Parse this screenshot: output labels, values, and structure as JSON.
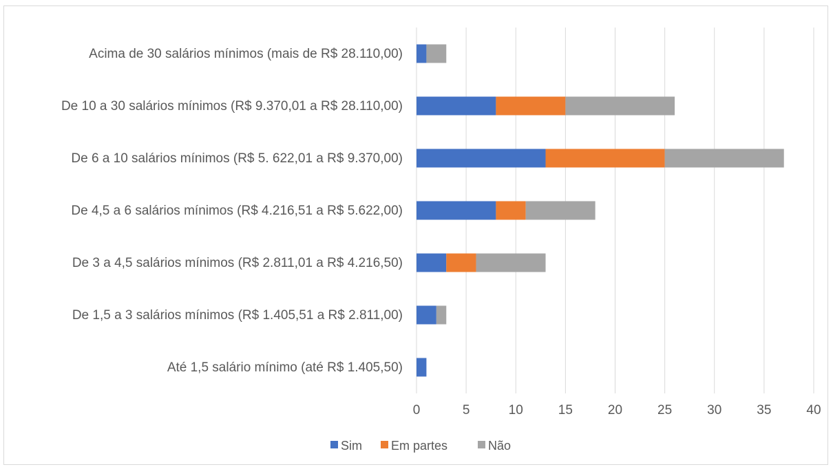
{
  "chart_data": {
    "type": "bar",
    "orientation": "horizontal",
    "stacked": true,
    "categories": [
      "Acima de 30 salários mínimos (mais de R$ 28.110,00)",
      "De 10 a 30 salários mínimos (R$ 9.370,01 a R$ 28.110,00)",
      "De 6 a 10 salários mínimos (R$ 5. 622,01 a R$ 9.370,00)",
      "De 4,5 a 6 salários mínimos (R$ 4.216,51 a R$ 5.622,00)",
      "De 3 a 4,5 salários mínimos (R$ 2.811,01 a R$ 4.216,50)",
      "De 1,5 a 3 salários mínimos (R$ 1.405,51 a R$ 2.811,00)",
      "Até 1,5 salário mínimo (até R$ 1.405,50)"
    ],
    "series": [
      {
        "name": "Sim",
        "color": "#4472c4",
        "values": [
          1,
          8,
          13,
          8,
          3,
          2,
          1
        ]
      },
      {
        "name": "Em partes",
        "color": "#ed7d31",
        "values": [
          0,
          7,
          12,
          3,
          3,
          0,
          0
        ]
      },
      {
        "name": "Não",
        "color": "#a5a5a5",
        "values": [
          2,
          11,
          12,
          7,
          7,
          1,
          0
        ]
      }
    ],
    "xlim": [
      0,
      40
    ],
    "xticks": [
      "0",
      "5",
      "10",
      "15",
      "20",
      "25",
      "30",
      "35",
      "40"
    ],
    "grid": true,
    "legend_position": "bottom",
    "title": "",
    "xlabel": "",
    "ylabel": ""
  }
}
